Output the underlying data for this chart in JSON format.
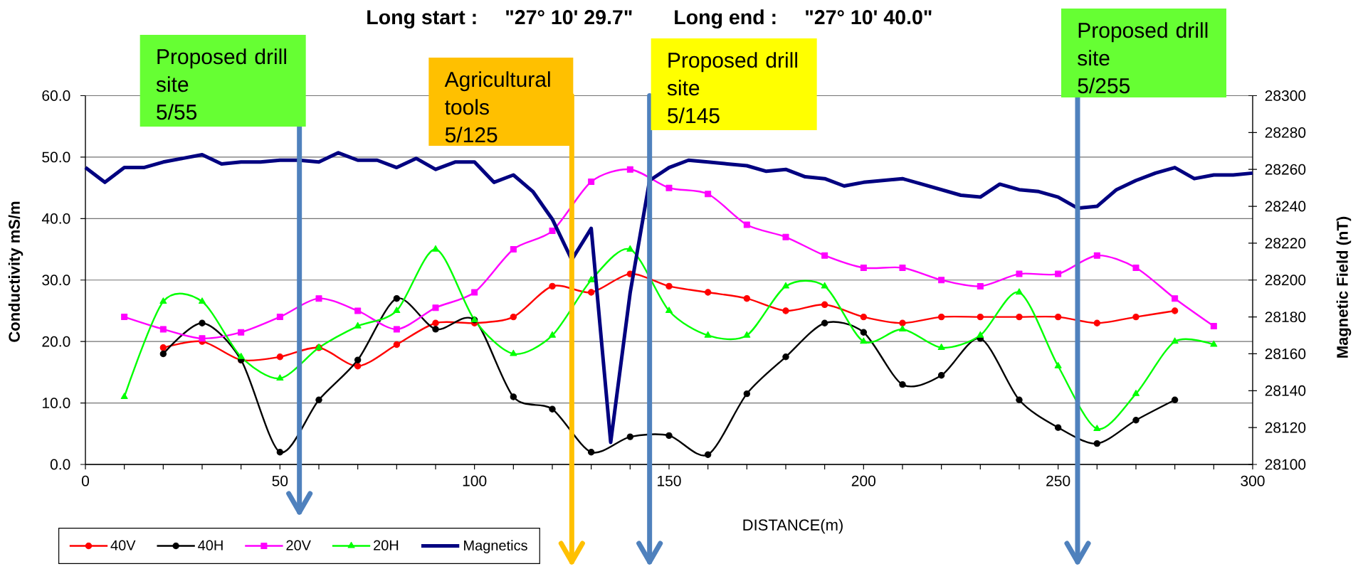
{
  "chart_data": {
    "type": "line",
    "annotations": [
      "Long start :",
      "\"27° 10' 29.7\"",
      "Long end :",
      "\"27° 10' 40.0\""
    ],
    "xlabel": "DISTANCE(m)",
    "ylabel": "Conductivity mS/m",
    "y2label": "Magnetic Field  (nT)",
    "xlim": [
      0,
      300
    ],
    "xticks": [
      0,
      {
        "value": 10,
        "label": null
      },
      {
        "value": 20,
        "label": null
      },
      {
        "value": 30,
        "label": null
      },
      {
        "value": 40,
        "label": null
      },
      50,
      {
        "value": 60,
        "label": null
      },
      {
        "value": 70,
        "label": null
      },
      {
        "value": 80,
        "label": null
      },
      {
        "value": 90,
        "label": null
      },
      100,
      {
        "value": 110,
        "label": null
      },
      {
        "value": 120,
        "label": null
      },
      {
        "value": 130,
        "label": null
      },
      {
        "value": 140,
        "label": null
      },
      150,
      {
        "value": 160,
        "label": null
      },
      {
        "value": 170,
        "label": null
      },
      {
        "value": 180,
        "label": null
      },
      {
        "value": 190,
        "label": null
      },
      200,
      {
        "value": 210,
        "label": null
      },
      {
        "value": 220,
        "label": null
      },
      {
        "value": 230,
        "label": null
      },
      {
        "value": 240,
        "label": null
      },
      250,
      {
        "value": 260,
        "label": null
      },
      {
        "value": 270,
        "label": null
      },
      {
        "value": 280,
        "label": null
      },
      {
        "value": 290,
        "label": null
      },
      300
    ],
    "ylim": [
      0,
      60
    ],
    "yticks": [
      {
        "value": 0,
        "label": "0.0"
      },
      {
        "value": 10,
        "label": "10.0"
      },
      {
        "value": 20,
        "label": "20.0"
      },
      {
        "value": 30,
        "label": "30.0"
      },
      {
        "value": 40,
        "label": "40.0"
      },
      {
        "value": 50,
        "label": "50.0"
      },
      {
        "value": 60,
        "label": "60.0"
      }
    ],
    "y2lim": [
      28100,
      28300
    ],
    "y2ticks": [
      28100,
      28120,
      28140,
      28160,
      28180,
      28200,
      28220,
      28240,
      28260,
      28280,
      28300
    ],
    "grid": "y",
    "legend": "bottom left",
    "series": [
      {
        "name": "40V",
        "color": "#ff0000",
        "marker": "circle",
        "x": [
          20,
          30,
          40,
          50,
          60,
          70,
          80,
          90,
          100,
          110,
          120,
          130,
          140,
          150,
          160,
          170,
          180,
          190,
          200,
          210,
          220,
          230,
          240,
          250,
          260,
          270,
          280
        ],
        "values": [
          19,
          20,
          17,
          17.5,
          19,
          16,
          19.5,
          23,
          23,
          24,
          29,
          28,
          31,
          29,
          28,
          27,
          25,
          26,
          24,
          23,
          24,
          24,
          24,
          24,
          23,
          24,
          25
        ]
      },
      {
        "name": "40H",
        "color": "#000000",
        "marker": "circle",
        "x": [
          20,
          30,
          40,
          50,
          60,
          70,
          80,
          90,
          100,
          110,
          120,
          130,
          140,
          150,
          160,
          170,
          180,
          190,
          200,
          210,
          220,
          230,
          240,
          250,
          260,
          270,
          280
        ],
        "values": [
          18,
          23,
          17,
          2,
          10.5,
          17,
          27,
          22,
          23.5,
          11,
          9,
          2,
          4.5,
          4.7,
          1.6,
          11.5,
          17.5,
          23,
          21.5,
          13,
          14.5,
          20.5,
          10.5,
          6,
          3.4,
          7.2,
          10.5
        ]
      },
      {
        "name": "20V",
        "color": "#ff00ff",
        "marker": "square",
        "x": [
          10,
          20,
          30,
          40,
          50,
          60,
          70,
          80,
          90,
          100,
          110,
          120,
          130,
          140,
          150,
          160,
          170,
          180,
          190,
          200,
          210,
          220,
          230,
          240,
          250,
          260,
          270,
          280,
          290
        ],
        "values": [
          24,
          22,
          20.5,
          21.5,
          24,
          27,
          25,
          22,
          25.5,
          28,
          35,
          38,
          46,
          48,
          45,
          44,
          39,
          37,
          34,
          32,
          32,
          30,
          29,
          31,
          31,
          34,
          32,
          27,
          22.5
        ]
      },
      {
        "name": "20H",
        "color": "#00ff00",
        "marker": "triangle",
        "x": [
          10,
          20,
          30,
          40,
          50,
          60,
          70,
          80,
          90,
          100,
          110,
          120,
          130,
          140,
          150,
          160,
          170,
          180,
          190,
          200,
          210,
          220,
          230,
          240,
          250,
          260,
          270,
          280,
          290
        ],
        "values": [
          11,
          26.5,
          26.5,
          17.5,
          14,
          19,
          22.5,
          25,
          35,
          23.5,
          18,
          21,
          30,
          35,
          25,
          21,
          21,
          29,
          29,
          20,
          22,
          19,
          21,
          28,
          16,
          5.8,
          11.5,
          20,
          19.5
        ]
      },
      {
        "name": "Magnetics",
        "color": "#000080",
        "marker": "none",
        "axis": "y2",
        "x": [
          0,
          5,
          10,
          15,
          20,
          25,
          30,
          35,
          40,
          45,
          50,
          55,
          60,
          65,
          70,
          75,
          80,
          85,
          90,
          95,
          100,
          105,
          110,
          115,
          120,
          125,
          130,
          135,
          140,
          145,
          150,
          155,
          160,
          165,
          170,
          175,
          180,
          185,
          190,
          195,
          200,
          205,
          210,
          215,
          220,
          225,
          230,
          235,
          240,
          245,
          250,
          255,
          260,
          265,
          270,
          275,
          280,
          285,
          290,
          295,
          300
        ],
        "values": [
          28261,
          28253,
          28261,
          28261,
          28264,
          28266,
          28268,
          28263,
          28264,
          28264,
          28265,
          28265,
          28264,
          28269,
          28265,
          28265,
          28261,
          28266,
          28260,
          28264,
          28264,
          28253,
          28257,
          28248,
          28233,
          28211,
          28228,
          28112,
          28193,
          28254,
          28261,
          28265,
          28264,
          28263,
          28262,
          28259,
          28260,
          28256,
          28255,
          28251,
          28253,
          28254,
          28255,
          28252,
          28249,
          28246,
          28245,
          28252,
          28249,
          28248,
          28245,
          28239,
          28240,
          28249,
          28254,
          28258,
          28261,
          28255,
          28257,
          28257,
          28258
        ]
      }
    ],
    "ref_lines": [
      {
        "axis": "x",
        "value": 55,
        "label": "Proposed drill site\n5/55",
        "color": "#4f81bd"
      },
      {
        "axis": "x",
        "value": 125,
        "label": "Agricultural tools\n5/125",
        "color": "#ffc000"
      },
      {
        "axis": "x",
        "value": 145,
        "label": "Proposed drill site\n5/145",
        "color": "#4f81bd"
      },
      {
        "axis": "x",
        "value": 255,
        "label": "Proposed drill site\n5/255",
        "color": "#4f81bd"
      }
    ]
  }
}
